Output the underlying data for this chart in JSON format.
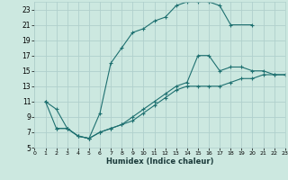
{
  "xlabel": "Humidex (Indice chaleur)",
  "xlim": [
    0,
    23
  ],
  "ylim": [
    5,
    24
  ],
  "xticks": [
    0,
    1,
    2,
    3,
    4,
    5,
    6,
    7,
    8,
    9,
    10,
    11,
    12,
    13,
    14,
    15,
    16,
    17,
    18,
    19,
    20,
    21,
    22,
    23
  ],
  "yticks": [
    5,
    7,
    9,
    11,
    13,
    15,
    17,
    19,
    21,
    23
  ],
  "bg_color": "#cce8e0",
  "grid_color": "#b0d0cc",
  "line_color": "#1e7070",
  "line1_x": [
    1,
    2,
    3,
    4,
    5,
    6,
    7,
    8,
    9,
    10,
    11,
    12,
    13,
    14,
    15,
    16,
    17,
    18,
    20
  ],
  "line1_y": [
    11,
    10,
    7.5,
    6.5,
    6.2,
    9.5,
    16,
    18,
    20,
    20.5,
    21.5,
    22,
    23.5,
    24,
    24,
    24,
    23.5,
    21,
    21
  ],
  "line2_x": [
    1,
    2,
    3,
    4,
    5,
    6,
    7,
    8,
    9,
    10,
    11,
    12,
    13,
    14,
    15,
    16,
    17,
    18,
    19,
    20,
    21,
    22,
    23
  ],
  "line2_y": [
    11,
    7.5,
    7.5,
    6.5,
    6.2,
    7,
    7.5,
    8,
    9,
    10,
    11,
    12,
    13,
    13.5,
    17,
    17,
    15,
    15.5,
    15.5,
    15,
    15,
    14.5,
    14.5
  ],
  "line3_x": [
    2,
    3,
    4,
    5,
    6,
    7,
    8,
    9,
    10,
    11,
    12,
    13,
    14,
    15,
    16,
    17,
    18,
    19,
    20,
    21,
    22,
    23
  ],
  "line3_y": [
    7.5,
    7.5,
    6.5,
    6.2,
    7,
    7.5,
    8,
    8.5,
    9.5,
    10.5,
    11.5,
    12.5,
    13,
    13,
    13,
    13,
    13.5,
    14,
    14,
    14.5,
    14.5,
    14.5
  ]
}
